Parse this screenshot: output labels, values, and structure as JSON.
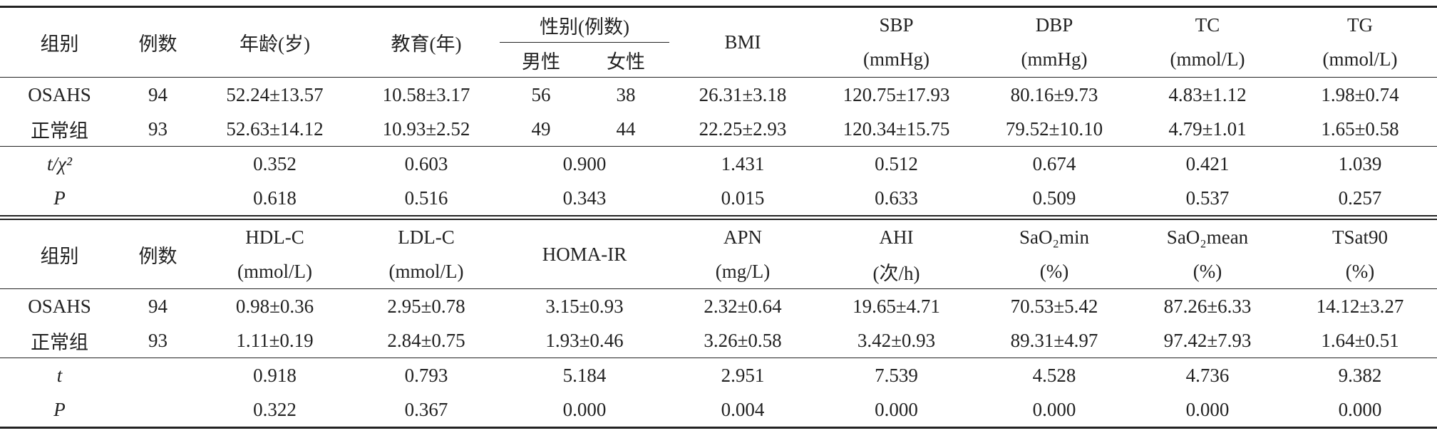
{
  "top": {
    "head": {
      "group": "组别",
      "n": "例数",
      "age": "年龄(岁)",
      "edu": "教育(年)",
      "sex": "性别(例数)",
      "male": "男性",
      "female": "女性",
      "bmi": "BMI"
    },
    "cols": [
      {
        "name": "SBP",
        "unit": "(mmHg)"
      },
      {
        "name": "DBP",
        "unit": "(mmHg)"
      },
      {
        "name": "TC",
        "unit": "(mmol/L)"
      },
      {
        "name": "TG",
        "unit": "(mmol/L)"
      }
    ],
    "rows": [
      [
        "OSAHS",
        "94",
        "52.24±13.57",
        "10.58±3.17",
        "56",
        "38",
        "26.31±3.18",
        "120.75±17.93",
        "80.16±9.73",
        "4.83±1.12",
        "1.98±0.74"
      ],
      [
        "正常组",
        "93",
        "52.63±14.12",
        "10.93±2.52",
        "49",
        "44",
        "22.25±2.93",
        "120.34±15.75",
        "79.52±10.10",
        "4.79±1.01",
        "1.65±0.58"
      ]
    ],
    "stats": [
      [
        "t/χ²",
        "0.352",
        "0.603",
        "0.900",
        "1.431",
        "0.512",
        "0.674",
        "0.421",
        "1.039"
      ],
      [
        "P",
        "0.618",
        "0.516",
        "0.343",
        "0.015",
        "0.633",
        "0.509",
        "0.537",
        "0.257"
      ]
    ]
  },
  "bottom": {
    "head": {
      "group": "组别",
      "n": "例数"
    },
    "cols": [
      {
        "name": "HDL-C",
        "unit": "(mmol/L)"
      },
      {
        "name": "LDL-C",
        "unit": "(mmol/L)"
      },
      {
        "name": "HOMA-IR"
      },
      {
        "name": "APN",
        "unit": "(mg/L)"
      },
      {
        "name": "AHI",
        "unit": "(次/h)"
      },
      {
        "name": "SaO₂min",
        "unit": "(%)"
      },
      {
        "name": "SaO₂mean",
        "unit": "(%)"
      },
      {
        "name": "TSat90",
        "unit": "(%)"
      }
    ],
    "rows": [
      [
        "OSAHS",
        "94",
        "0.98±0.36",
        "2.95±0.78",
        "3.15±0.93",
        "2.32±0.64",
        "19.65±4.71",
        "70.53±5.42",
        "87.26±6.33",
        "14.12±3.27"
      ],
      [
        "正常组",
        "93",
        "1.11±0.19",
        "2.84±0.75",
        "1.93±0.46",
        "3.26±0.58",
        "3.42±0.93",
        "89.31±4.97",
        "97.42±7.93",
        "1.64±0.51"
      ]
    ],
    "stats": [
      [
        "t",
        "0.918",
        "0.793",
        "5.184",
        "2.951",
        "7.539",
        "4.528",
        "4.736",
        "9.382"
      ],
      [
        "P",
        "0.322",
        "0.367",
        "0.000",
        "0.004",
        "0.000",
        "0.000",
        "0.000",
        "0.000"
      ]
    ]
  }
}
